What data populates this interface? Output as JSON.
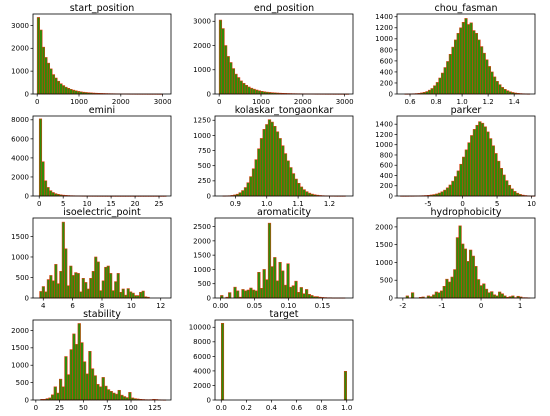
{
  "colors": {
    "bar_fill": "#2e8b0a",
    "bar_edge": "#e03a10",
    "axis": "#000000",
    "background": "#ffffff"
  },
  "chart_data": [
    {
      "type": "bar",
      "title": "start_position",
      "xlim": [
        -100,
        3200
      ],
      "ylim": [
        0,
        3500
      ],
      "xticks": [
        0,
        1000,
        2000,
        3000
      ],
      "yticks": [
        0,
        1000,
        2000,
        3000
      ],
      "bins": {
        "start": 0,
        "width": 60,
        "values": [
          3350,
          2800,
          2050,
          1600,
          1350,
          1100,
          850,
          700,
          560,
          450,
          370,
          300,
          250,
          205,
          170,
          140,
          115,
          95,
          80,
          68,
          58,
          50,
          42,
          36,
          31,
          27,
          23,
          20,
          17,
          15,
          13,
          11,
          10,
          9,
          8,
          7,
          6,
          5,
          5,
          4,
          4,
          3,
          3,
          3,
          2,
          2,
          2,
          2,
          1,
          1
        ]
      }
    },
    {
      "type": "bar",
      "title": "end_position",
      "xlim": [
        -100,
        3200
      ],
      "ylim": [
        0,
        3300
      ],
      "xticks": [
        0,
        1000,
        2000,
        3000
      ],
      "yticks": [
        0,
        1000,
        2000,
        3000
      ],
      "bins": {
        "start": 0,
        "width": 62,
        "values": [
          3050,
          2700,
          2000,
          1550,
          1300,
          1050,
          820,
          680,
          540,
          440,
          360,
          290,
          240,
          200,
          165,
          135,
          110,
          92,
          78,
          66,
          56,
          48,
          41,
          35,
          30,
          26,
          22,
          19,
          16,
          14,
          12,
          11,
          10,
          9,
          8,
          7,
          6,
          5,
          5,
          4,
          4,
          3,
          3,
          3,
          2,
          2,
          2,
          2,
          1,
          1
        ]
      }
    },
    {
      "type": "bar",
      "title": "chou_fasman",
      "xlim": [
        0.5,
        1.56
      ],
      "ylim": [
        0,
        1450
      ],
      "xticks": [
        0.6,
        0.8,
        1.0,
        1.2,
        1.4
      ],
      "xtick_labels": [
        "0.6",
        "0.8",
        "1.0",
        "1.2",
        "1.4"
      ],
      "yticks": [
        0,
        200,
        400,
        600,
        800,
        1000,
        1200,
        1400
      ],
      "bins": {
        "start": 0.56,
        "width": 0.02,
        "values": [
          1,
          2,
          3,
          5,
          8,
          12,
          20,
          30,
          45,
          70,
          100,
          150,
          210,
          290,
          380,
          480,
          590,
          720,
          850,
          980,
          1100,
          1200,
          1300,
          1370,
          1260,
          1290,
          1150,
          1100,
          980,
          860,
          740,
          620,
          500,
          400,
          310,
          230,
          170,
          120,
          85,
          60,
          40,
          28,
          18,
          12,
          8,
          5,
          3,
          2
        ]
      }
    },
    {
      "type": "bar",
      "title": "emini",
      "xlim": [
        -1.3,
        27.5
      ],
      "ylim": [
        0,
        8400
      ],
      "xticks": [
        0,
        5,
        10,
        15,
        20,
        25
      ],
      "yticks": [
        0,
        2000,
        4000,
        6000,
        8000
      ],
      "bins": {
        "start": 0,
        "width": 0.53,
        "values": [
          8100,
          3600,
          1600,
          900,
          560,
          370,
          250,
          175,
          125,
          90,
          66,
          50,
          38,
          30,
          24,
          19,
          15,
          12,
          10,
          8,
          7,
          6,
          5,
          4,
          4,
          3,
          3,
          2,
          2,
          2,
          2,
          1,
          1,
          1,
          1,
          1,
          1,
          1,
          1,
          1,
          1,
          1,
          1,
          1,
          1,
          1,
          1,
          1,
          1,
          1
        ]
      }
    },
    {
      "type": "bar",
      "title": "kolaskar_tongaonkar",
      "xlim": [
        0.835,
        1.275
      ],
      "ylim": [
        0,
        1320
      ],
      "xticks": [
        0.9,
        1.0,
        1.1,
        1.2
      ],
      "xtick_labels": [
        "0.9",
        "1.0",
        "1.1",
        "1.2"
      ],
      "yticks": [
        0,
        250,
        500,
        750,
        1000,
        1250
      ],
      "bins": {
        "start": 0.86,
        "width": 0.0085,
        "values": [
          2,
          3,
          5,
          10,
          18,
          30,
          55,
          90,
          140,
          220,
          320,
          450,
          600,
          780,
          950,
          1100,
          1180,
          1260,
          1220,
          1150,
          1060,
          950,
          830,
          700,
          580,
          470,
          370,
          280,
          210,
          150,
          105,
          72,
          48,
          32,
          21,
          14,
          9,
          6,
          4,
          3,
          2,
          2,
          1,
          1,
          1,
          1
        ]
      }
    },
    {
      "type": "bar",
      "title": "parker",
      "xlim": [
        -9.5,
        10.5
      ],
      "ylim": [
        0,
        1560
      ],
      "xticks": [
        -5,
        0,
        5,
        10
      ],
      "yticks": [
        0,
        200,
        400,
        600,
        800,
        1000,
        1200,
        1400
      ],
      "bins": {
        "start": -9,
        "width": 0.39,
        "values": [
          1,
          1,
          1,
          2,
          2,
          3,
          4,
          5,
          7,
          10,
          14,
          20,
          28,
          40,
          58,
          82,
          115,
          160,
          215,
          290,
          380,
          490,
          620,
          760,
          900,
          1040,
          1180,
          1300,
          1380,
          1450,
          1420,
          1350,
          1250,
          1120,
          980,
          830,
          680,
          540,
          410,
          300,
          210,
          140,
          90,
          55,
          32,
          18,
          10,
          5,
          3,
          2
        ]
      }
    },
    {
      "type": "bar",
      "title": "isoelectric_point",
      "xlim": [
        3.3,
        12.7
      ],
      "ylim": [
        0,
        1950
      ],
      "xticks": [
        4,
        6,
        8,
        10,
        12
      ],
      "yticks": [
        0,
        500,
        1000,
        1500
      ],
      "bins": {
        "start": 3.75,
        "width": 0.17,
        "values": [
          160,
          280,
          150,
          450,
          550,
          420,
          820,
          350,
          650,
          1850,
          1200,
          300,
          780,
          550,
          620,
          600,
          150,
          480,
          380,
          220,
          480,
          650,
          1000,
          880,
          180,
          420,
          750,
          780,
          600,
          180,
          400,
          600,
          140,
          220,
          70,
          230,
          150,
          120,
          60,
          60,
          140,
          170,
          30,
          20
        ]
      }
    },
    {
      "type": "bar",
      "title": "aromaticity",
      "xlim": [
        -0.008,
        0.195
      ],
      "ylim": [
        0,
        2800
      ],
      "xticks": [
        0.0,
        0.05,
        0.1,
        0.15
      ],
      "xtick_labels": [
        "0.00",
        "0.05",
        "0.10",
        "0.15"
      ],
      "yticks": [
        0,
        500,
        1000,
        1500,
        2000,
        2500
      ],
      "bins": {
        "start": 0,
        "width": 0.0039,
        "values": [
          90,
          0,
          30,
          190,
          0,
          380,
          250,
          30,
          300,
          250,
          280,
          350,
          280,
          250,
          900,
          340,
          1000,
          640,
          2620,
          1100,
          1420,
          600,
          1250,
          950,
          450,
          1200,
          380,
          430,
          590,
          200,
          370,
          150,
          300,
          130,
          90,
          50,
          50,
          30,
          20,
          15,
          10,
          10,
          5,
          5,
          5,
          5,
          5
        ]
      }
    },
    {
      "type": "bar",
      "title": "hydrophobicity",
      "xlim": [
        -2.15,
        1.38
      ],
      "ylim": [
        0,
        2250
      ],
      "xticks": [
        -2,
        -1,
        0,
        1
      ],
      "yticks": [
        0,
        500,
        1000,
        1500,
        2000
      ],
      "bins": {
        "start": -1.92,
        "width": 0.0675,
        "values": [
          60,
          0,
          150,
          0,
          0,
          20,
          30,
          0,
          60,
          40,
          90,
          170,
          150,
          200,
          330,
          530,
          450,
          590,
          800,
          1700,
          2030,
          1520,
          1380,
          1030,
          1350,
          1180,
          890,
          520,
          350,
          400,
          250,
          150,
          180,
          90,
          60,
          170,
          120,
          60,
          20,
          40,
          60,
          10,
          50,
          30,
          10,
          10,
          5
        ]
      }
    },
    {
      "type": "bar",
      "title": "stability",
      "xlim": [
        -3,
        142
      ],
      "ylim": [
        0,
        2300
      ],
      "xticks": [
        0,
        25,
        50,
        75,
        100,
        125
      ],
      "yticks": [
        0,
        500,
        1000,
        1500,
        2000
      ],
      "bins": {
        "start": 5,
        "width": 2.8,
        "values": [
          20,
          20,
          40,
          60,
          150,
          380,
          200,
          600,
          380,
          1250,
          730,
          1450,
          1900,
          1600,
          2200,
          1650,
          1100,
          750,
          1400,
          900,
          700,
          450,
          380,
          650,
          400,
          300,
          250,
          200,
          170,
          280,
          140,
          100,
          70,
          220,
          60,
          40,
          30,
          20,
          15,
          10,
          8,
          10,
          20,
          15,
          8,
          5,
          3
        ]
      }
    },
    {
      "type": "bar",
      "title": "target",
      "xlim": [
        -0.05,
        1.05
      ],
      "ylim": [
        0,
        11000
      ],
      "xticks": [
        0.0,
        0.2,
        0.4,
        0.6,
        0.8,
        1.0
      ],
      "xtick_labels": [
        "0.0",
        "0.2",
        "0.4",
        "0.6",
        "0.8",
        "1.0"
      ],
      "yticks": [
        0,
        2000,
        4000,
        6000,
        8000,
        10000
      ],
      "bins": {
        "start": 0,
        "width": 0.02,
        "values": [
          10550,
          0,
          0,
          0,
          0,
          0,
          0,
          0,
          0,
          0,
          0,
          0,
          0,
          0,
          0,
          0,
          0,
          0,
          0,
          0,
          0,
          0,
          0,
          0,
          0,
          0,
          0,
          0,
          0,
          0,
          0,
          0,
          0,
          0,
          0,
          0,
          0,
          0,
          0,
          0,
          0,
          0,
          0,
          0,
          0,
          0,
          0,
          0,
          0,
          3950
        ]
      }
    }
  ]
}
